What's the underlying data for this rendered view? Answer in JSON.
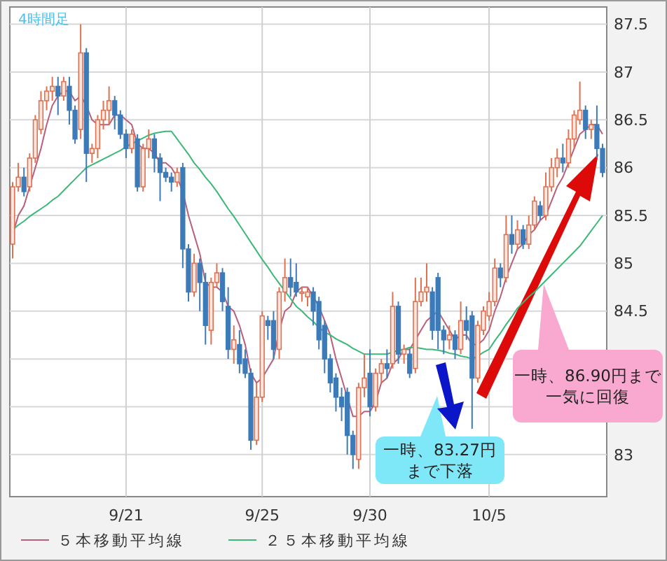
{
  "chart_data": {
    "type": "candlestick",
    "title": "4時間足",
    "categories": [
      null,
      null,
      null,
      null,
      null,
      null,
      null,
      null,
      null,
      null,
      null,
      null,
      null,
      null,
      null,
      null,
      null,
      null,
      null,
      null,
      "9/21",
      null,
      null,
      null,
      null,
      null,
      null,
      null,
      null,
      null,
      null,
      null,
      null,
      null,
      null,
      null,
      null,
      null,
      null,
      null,
      null,
      null,
      null,
      null,
      "9/25",
      null,
      null,
      null,
      null,
      null,
      null,
      null,
      null,
      null,
      null,
      null,
      null,
      null,
      null,
      null,
      null,
      null,
      null,
      "9/30",
      null,
      null,
      null,
      null,
      null,
      null,
      null,
      null,
      null,
      null,
      null,
      null,
      null,
      null,
      null,
      null,
      null,
      null,
      null,
      null,
      "10/5",
      null,
      null,
      null,
      null,
      null,
      null,
      null,
      null,
      null,
      null,
      null,
      null,
      null,
      null,
      null,
      null,
      null,
      null,
      null,
      null
    ],
    "ohlc": [
      [
        85.2,
        85.85,
        85.05,
        85.8
      ],
      [
        85.8,
        86.05,
        85.75,
        85.9
      ],
      [
        85.9,
        86.0,
        85.7,
        85.75
      ],
      [
        85.8,
        86.15,
        85.75,
        86.1
      ],
      [
        86.1,
        86.55,
        86.05,
        86.5
      ],
      [
        86.4,
        86.8,
        86.35,
        86.7
      ],
      [
        86.7,
        86.85,
        86.6,
        86.8
      ],
      [
        86.8,
        86.95,
        86.7,
        86.85
      ],
      [
        86.85,
        86.95,
        86.55,
        86.75
      ],
      [
        86.75,
        86.95,
        86.7,
        86.9
      ],
      [
        86.85,
        86.95,
        86.45,
        86.6
      ],
      [
        86.6,
        86.65,
        86.25,
        86.3
      ],
      [
        86.4,
        87.5,
        86.3,
        87.2
      ],
      [
        87.2,
        87.25,
        85.85,
        86.15
      ],
      [
        86.15,
        86.25,
        86.05,
        86.2
      ],
      [
        86.2,
        86.55,
        86.1,
        86.5
      ],
      [
        86.5,
        86.7,
        86.4,
        86.6
      ],
      [
        86.6,
        86.85,
        86.45,
        86.7
      ],
      [
        86.7,
        86.75,
        86.4,
        86.55
      ],
      [
        86.55,
        86.6,
        86.3,
        86.35
      ],
      [
        86.35,
        86.4,
        86.1,
        86.2
      ],
      [
        86.2,
        86.4,
        86.15,
        86.35
      ],
      [
        86.3,
        86.35,
        85.75,
        85.8
      ],
      [
        85.8,
        86.25,
        85.75,
        86.2
      ],
      [
        86.2,
        86.4,
        86.1,
        86.3
      ],
      [
        86.3,
        86.35,
        85.95,
        86.1
      ],
      [
        86.1,
        86.15,
        85.65,
        85.95
      ],
      [
        85.95,
        86.0,
        85.85,
        85.9
      ],
      [
        85.9,
        85.95,
        85.75,
        85.85
      ],
      [
        85.85,
        86.0,
        85.8,
        85.95
      ],
      [
        86.0,
        86.05,
        84.95,
        85.15
      ],
      [
        85.15,
        85.2,
        84.6,
        84.7
      ],
      [
        84.7,
        85.1,
        84.65,
        85.0
      ],
      [
        85.0,
        85.05,
        84.5,
        84.8
      ],
      [
        84.8,
        84.9,
        84.15,
        84.35
      ],
      [
        84.3,
        84.85,
        84.15,
        84.8
      ],
      [
        84.8,
        85.0,
        84.75,
        84.9
      ],
      [
        84.9,
        84.95,
        84.5,
        84.6
      ],
      [
        84.55,
        84.75,
        84.0,
        84.1
      ],
      [
        84.1,
        84.35,
        83.95,
        84.2
      ],
      [
        84.15,
        84.3,
        83.85,
        83.95
      ],
      [
        84.0,
        84.1,
        83.8,
        83.85
      ],
      [
        83.85,
        83.9,
        83.05,
        83.15
      ],
      [
        83.15,
        83.75,
        83.1,
        83.6
      ],
      [
        83.6,
        84.5,
        83.55,
        84.45
      ],
      [
        84.4,
        84.45,
        84.2,
        84.35
      ],
      [
        84.4,
        84.5,
        84.0,
        84.1
      ],
      [
        84.1,
        84.75,
        84.0,
        84.7
      ],
      [
        84.7,
        85.05,
        84.6,
        84.85
      ],
      [
        84.85,
        85.05,
        84.65,
        84.75
      ],
      [
        84.8,
        85.0,
        84.65,
        84.7
      ],
      [
        84.7,
        84.75,
        84.6,
        84.7
      ],
      [
        84.65,
        84.75,
        84.55,
        84.7
      ],
      [
        84.7,
        84.75,
        84.35,
        84.5
      ],
      [
        84.6,
        84.65,
        84.1,
        84.2
      ],
      [
        84.35,
        84.4,
        83.85,
        84.0
      ],
      [
        84.0,
        84.05,
        83.65,
        83.75
      ],
      [
        83.8,
        83.85,
        83.45,
        83.6
      ],
      [
        83.6,
        83.7,
        83.35,
        83.5
      ],
      [
        83.65,
        83.7,
        83.0,
        83.2
      ],
      [
        83.2,
        83.25,
        82.85,
        83.0
      ],
      [
        82.95,
        83.75,
        82.85,
        83.7
      ],
      [
        83.7,
        84.05,
        83.6,
        83.8
      ],
      [
        83.85,
        84.1,
        83.4,
        83.5
      ],
      [
        83.5,
        83.9,
        83.45,
        83.85
      ],
      [
        83.85,
        84.0,
        83.75,
        83.95
      ],
      [
        83.95,
        84.1,
        83.8,
        83.9
      ],
      [
        83.95,
        84.7,
        83.9,
        84.55
      ],
      [
        84.55,
        84.6,
        83.95,
        84.05
      ],
      [
        84.05,
        84.15,
        83.95,
        84.1
      ],
      [
        84.05,
        84.1,
        83.8,
        83.85
      ],
      [
        83.9,
        84.85,
        83.85,
        84.6
      ],
      [
        84.6,
        84.85,
        84.55,
        84.7
      ],
      [
        84.7,
        85.0,
        84.6,
        84.75
      ],
      [
        84.7,
        84.75,
        84.2,
        84.3
      ],
      [
        84.85,
        84.9,
        84.1,
        84.3
      ],
      [
        84.3,
        84.35,
        84.05,
        84.2
      ],
      [
        84.2,
        84.35,
        84.1,
        84.25
      ],
      [
        84.25,
        84.3,
        84.0,
        84.1
      ],
      [
        84.1,
        84.6,
        84.05,
        84.4
      ],
      [
        84.4,
        84.55,
        84.2,
        84.3
      ],
      [
        84.45,
        84.5,
        83.27,
        83.8
      ],
      [
        83.8,
        84.4,
        83.75,
        84.35
      ],
      [
        84.3,
        84.55,
        84.25,
        84.5
      ],
      [
        84.45,
        84.7,
        84.4,
        84.6
      ],
      [
        84.6,
        85.05,
        84.55,
        84.95
      ],
      [
        84.95,
        85.0,
        84.75,
        84.85
      ],
      [
        84.85,
        85.5,
        84.8,
        85.3
      ],
      [
        85.3,
        85.5,
        85.1,
        85.2
      ],
      [
        85.2,
        85.45,
        85.15,
        85.35
      ],
      [
        85.35,
        85.4,
        85.15,
        85.2
      ],
      [
        85.2,
        85.5,
        85.15,
        85.4
      ],
      [
        85.4,
        85.7,
        85.35,
        85.65
      ],
      [
        85.6,
        85.65,
        85.45,
        85.5
      ],
      [
        85.5,
        85.95,
        85.45,
        85.8
      ],
      [
        85.8,
        86.1,
        85.75,
        86.0
      ],
      [
        86.0,
        86.2,
        85.9,
        86.1
      ],
      [
        86.1,
        86.25,
        85.95,
        86.05
      ],
      [
        86.05,
        86.4,
        86.0,
        86.3
      ],
      [
        86.3,
        86.6,
        86.2,
        86.55
      ],
      [
        86.5,
        86.9,
        86.45,
        86.6
      ],
      [
        86.6,
        86.65,
        86.3,
        86.4
      ],
      [
        86.4,
        86.5,
        86.3,
        86.45
      ],
      [
        86.45,
        86.65,
        86.1,
        86.2
      ],
      [
        86.2,
        86.25,
        85.9,
        85.95
      ]
    ],
    "colors": [
      "#e0704f",
      "#e0704f",
      "#3d7ab8",
      "#e0704f",
      "#e0704f",
      "#e0704f",
      "#e0704f",
      "#e0704f",
      "#3d7ab8",
      "#e0704f",
      "#3d7ab8",
      "#3d7ab8",
      "#e0704f",
      "#3d7ab8",
      "#e0704f",
      "#e0704f",
      "#e0704f",
      "#e0704f",
      "#3d7ab8",
      "#3d7ab8",
      "#3d7ab8",
      "#e0704f",
      "#3d7ab8",
      "#e0704f",
      "#e0704f",
      "#3d7ab8",
      "#3d7ab8",
      "#3d7ab8",
      "#3d7ab8",
      "#e0704f",
      "#3d7ab8",
      "#3d7ab8",
      "#e0704f",
      "#3d7ab8",
      "#3d7ab8",
      "#e0704f",
      "#e0704f",
      "#3d7ab8",
      "#3d7ab8",
      "#e0704f",
      "#3d7ab8",
      "#3d7ab8",
      "#3d7ab8",
      "#e0704f",
      "#e0704f",
      "#3d7ab8",
      "#3d7ab8",
      "#e0704f",
      "#e0704f",
      "#3d7ab8",
      "#3d7ab8",
      "#e0704f",
      "#e0704f",
      "#3d7ab8",
      "#3d7ab8",
      "#3d7ab8",
      "#3d7ab8",
      "#3d7ab8",
      "#3d7ab8",
      "#3d7ab8",
      "#3d7ab8",
      "#e0704f",
      "#e0704f",
      "#3d7ab8",
      "#e0704f",
      "#e0704f",
      "#3d7ab8",
      "#e0704f",
      "#3d7ab8",
      "#e0704f",
      "#3d7ab8",
      "#e0704f",
      "#e0704f",
      "#e0704f",
      "#3d7ab8",
      "#3d7ab8",
      "#3d7ab8",
      "#e0704f",
      "#3d7ab8",
      "#e0704f",
      "#3d7ab8",
      "#3d7ab8",
      "#e0704f",
      "#e0704f",
      "#e0704f",
      "#e0704f",
      "#3d7ab8",
      "#e0704f",
      "#3d7ab8",
      "#e0704f",
      "#3d7ab8",
      "#e0704f",
      "#e0704f",
      "#3d7ab8",
      "#e0704f",
      "#e0704f",
      "#e0704f",
      "#3d7ab8",
      "#e0704f",
      "#e0704f",
      "#e0704f",
      "#3d7ab8",
      "#e0704f",
      "#3d7ab8",
      "#3d7ab8"
    ],
    "series": [
      {
        "type": "line",
        "name": "５本移動平均線",
        "color": "#b8607a",
        "values": [
          85.3,
          85.5,
          85.6,
          85.8,
          86.0,
          86.2,
          86.45,
          86.65,
          86.75,
          86.8,
          86.8,
          86.7,
          86.75,
          86.65,
          86.5,
          86.45,
          86.45,
          86.45,
          86.55,
          86.55,
          86.5,
          86.45,
          86.25,
          86.2,
          86.2,
          86.15,
          86.05,
          86.05,
          86.0,
          85.9,
          85.75,
          85.5,
          85.3,
          85.1,
          84.8,
          84.75,
          84.75,
          84.7,
          84.55,
          84.5,
          84.35,
          84.15,
          83.85,
          83.75,
          83.8,
          83.9,
          84.0,
          84.3,
          84.5,
          84.55,
          84.7,
          84.75,
          84.75,
          84.65,
          84.55,
          84.4,
          84.25,
          84.0,
          83.8,
          83.6,
          83.4,
          83.4,
          83.45,
          83.45,
          83.55,
          83.75,
          83.8,
          83.95,
          84.0,
          84.1,
          84.1,
          84.2,
          84.3,
          84.4,
          84.45,
          84.5,
          84.4,
          84.3,
          84.2,
          84.25,
          84.25,
          84.15,
          84.15,
          84.2,
          84.3,
          84.5,
          84.65,
          84.85,
          85.0,
          85.15,
          85.2,
          85.3,
          85.35,
          85.45,
          85.5,
          85.65,
          85.8,
          85.9,
          86.05,
          86.2,
          86.35,
          86.4,
          86.45,
          86.45,
          86.35
        ]
      },
      {
        "type": "line",
        "name": "２５本移動平均線",
        "color": "#3cb878",
        "values": [
          85.35,
          85.4,
          85.44,
          85.49,
          85.53,
          85.57,
          85.61,
          85.66,
          85.7,
          85.76,
          85.82,
          85.88,
          85.94,
          86.0,
          86.03,
          86.06,
          86.09,
          86.12,
          86.15,
          86.18,
          86.22,
          86.25,
          86.28,
          86.31,
          86.34,
          86.36,
          86.37,
          86.38,
          86.38,
          86.3,
          86.22,
          86.14,
          86.05,
          85.98,
          85.9,
          85.83,
          85.75,
          85.66,
          85.57,
          85.49,
          85.4,
          85.31,
          85.22,
          85.13,
          85.04,
          84.96,
          84.87,
          84.79,
          84.71,
          84.63,
          84.55,
          84.5,
          84.44,
          84.39,
          84.33,
          84.28,
          84.25,
          84.21,
          84.18,
          84.15,
          84.11,
          84.08,
          84.05,
          84.05,
          84.05,
          84.05,
          84.05,
          84.07,
          84.09,
          84.1,
          84.12,
          84.12,
          84.11,
          84.1,
          84.1,
          84.09,
          84.08,
          84.06,
          84.05,
          84.03,
          84.02,
          84.0,
          84.03,
          84.07,
          84.1,
          84.19,
          84.27,
          84.36,
          84.44,
          84.53,
          84.59,
          84.65,
          84.7,
          84.76,
          84.82,
          84.88,
          84.94,
          85.0,
          85.06,
          85.12,
          85.18,
          85.26,
          85.34,
          85.42,
          85.5
        ]
      }
    ],
    "ylim": [
      82.56,
      87.68
    ],
    "yticks": [
      83,
      {
        "value": 83.5,
        "label": null
      },
      {
        "value": 84,
        "label": null
      },
      84.5,
      85,
      85.5,
      86,
      86.5,
      87,
      87.5
    ],
    "grid": true,
    "legend": "bottom",
    "annotations": [
      "一時、83.27円",
      "まで下落",
      "一時、86.90円まで",
      "一気に回復"
    ]
  }
}
